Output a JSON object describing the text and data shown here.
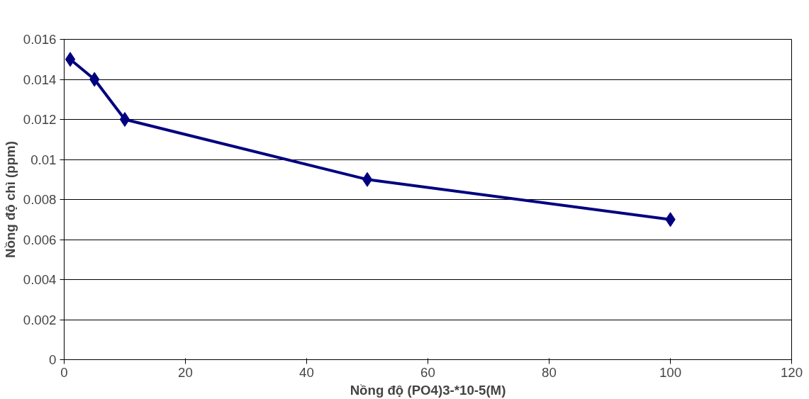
{
  "chart_data": {
    "type": "line",
    "xlabel": "Nồng độ (PO4)3-*10-5(M)",
    "ylabel": "Nồng độ chì (ppm)",
    "x": [
      1,
      5,
      10,
      50,
      100
    ],
    "series": [
      {
        "color": "#000080",
        "values": [
          0.015,
          0.014,
          0.012,
          0.009,
          0.007
        ]
      }
    ],
    "xlim": [
      0,
      120
    ],
    "xticks": [
      0,
      20,
      40,
      60,
      80,
      100,
      120
    ],
    "ylim": [
      0,
      0.016
    ],
    "yticks": [
      0,
      0.002,
      0.004,
      0.006,
      0.008,
      0.01,
      0.012,
      0.014,
      0.016
    ],
    "grid": "y",
    "marker": "diamond",
    "line_style": "solid"
  }
}
